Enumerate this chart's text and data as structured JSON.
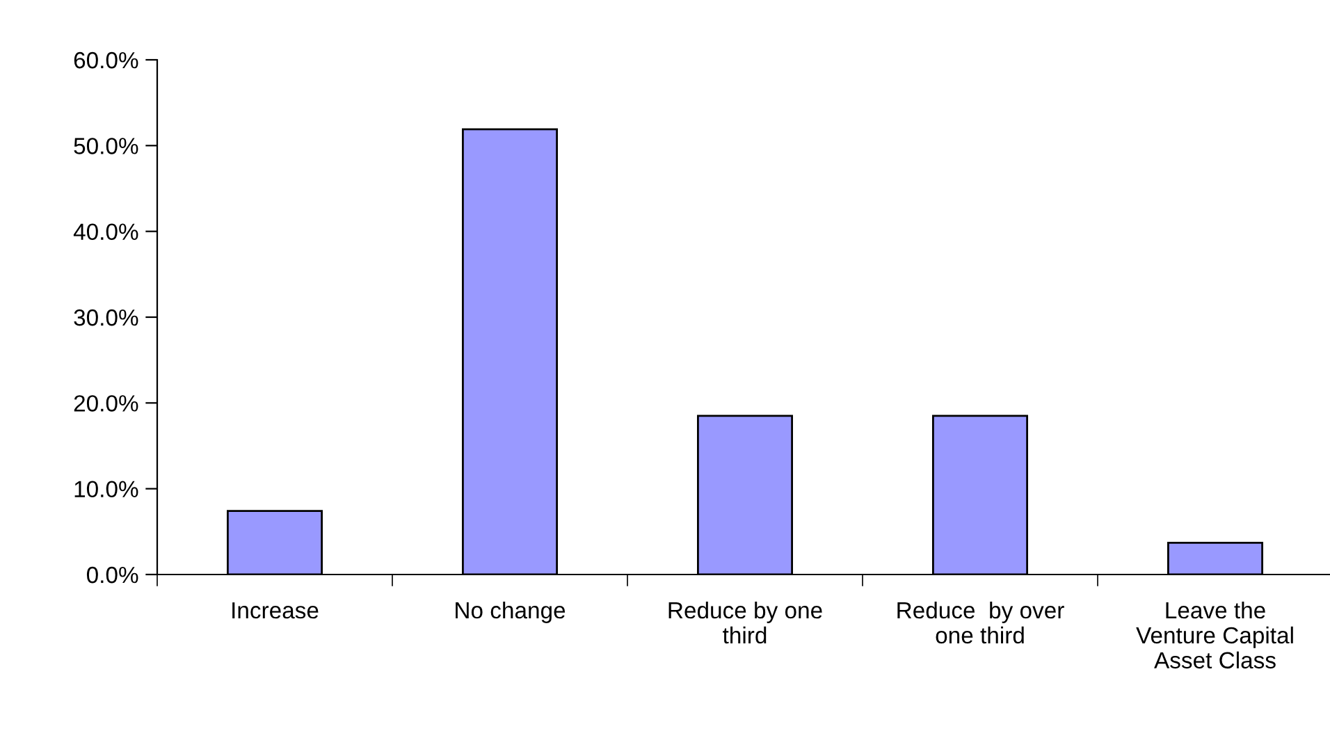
{
  "chart_data": {
    "type": "bar",
    "categories": [
      "Increase",
      "No change",
      "Reduce by one\nthird",
      "Reduce  by over\none third",
      "Leave the\nVenture Capital\nAsset Class"
    ],
    "values": [
      7.4,
      51.9,
      18.5,
      18.5,
      3.7
    ],
    "color": "#9999ff",
    "ylim": [
      0,
      60
    ],
    "yticks": [
      {
        "value": 0,
        "label": "0.0%"
      },
      {
        "value": 10,
        "label": "10.0%"
      },
      {
        "value": 20,
        "label": "20.0%"
      },
      {
        "value": 30,
        "label": "30.0%"
      },
      {
        "value": 40,
        "label": "40.0%"
      },
      {
        "value": 50,
        "label": "50.0%"
      },
      {
        "value": 60,
        "label": "60.0%"
      }
    ],
    "grid": false,
    "legend": false
  }
}
